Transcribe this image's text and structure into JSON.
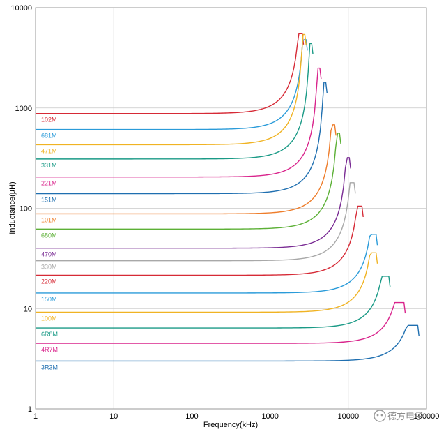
{
  "chart_data": {
    "type": "line",
    "xlabel": "Frequency(kHz)",
    "ylabel": "Inductance(µH)",
    "xscale": "log",
    "yscale": "log",
    "xlim": [
      1,
      100000
    ],
    "ylim": [
      1,
      10000
    ],
    "xticks": [
      1,
      10,
      100,
      1000,
      10000,
      100000
    ],
    "xtick_labels": [
      "1",
      "10",
      "100",
      "1000",
      "10000",
      "100000"
    ],
    "yticks": [
      1,
      10,
      100,
      1000,
      10000
    ],
    "ytick_labels": [
      "1",
      "10",
      "100",
      "1000",
      "10000"
    ],
    "grid": true,
    "series": [
      {
        "name": "102M",
        "color": "#d62a36",
        "L": 880,
        "srf": 2500,
        "peak": 5500
      },
      {
        "name": "681M",
        "color": "#2a9bd9",
        "L": 610,
        "srf": 2800,
        "peak": 4800
      },
      {
        "name": "471M",
        "color": "#f0b323",
        "L": 430,
        "srf": 2700,
        "peak": 5400
      },
      {
        "name": "331M",
        "color": "#1a9a86",
        "L": 310,
        "srf": 3300,
        "peak": 4400
      },
      {
        "name": "221M",
        "color": "#d9248c",
        "L": 205,
        "srf": 4200,
        "peak": 2500
      },
      {
        "name": "151M",
        "color": "#1f6fb0",
        "L": 140,
        "srf": 5000,
        "peak": 1800
      },
      {
        "name": "101M",
        "color": "#ee7d2b",
        "L": 88,
        "srf": 6500,
        "peak": 680
      },
      {
        "name": "680M",
        "color": "#5cb036",
        "L": 62,
        "srf": 7500,
        "peak": 560
      },
      {
        "name": "470M",
        "color": "#7a2c94",
        "L": 40,
        "srf": 10000,
        "peak": 320
      },
      {
        "name": "330M",
        "color": "#a8a8a8",
        "L": 30,
        "srf": 11500,
        "peak": 180
      },
      {
        "name": "220M",
        "color": "#d62a36",
        "L": 21.5,
        "srf": 14500,
        "peak": 105
      },
      {
        "name": "150M",
        "color": "#2a9bd9",
        "L": 14.3,
        "srf": 22000,
        "peak": 55
      },
      {
        "name": "100M",
        "color": "#f0b323",
        "L": 9.2,
        "srf": 22000,
        "peak": 36
      },
      {
        "name": "6R8M",
        "color": "#1a9a86",
        "L": 6.4,
        "srf": 32000,
        "peak": 21
      },
      {
        "name": "4R7M",
        "color": "#d9248c",
        "L": 4.5,
        "srf": 50000,
        "peak": 11.5
      },
      {
        "name": "3R3M",
        "color": "#1f6fb0",
        "L": 3.0,
        "srf": 75000,
        "peak": 6.8
      }
    ]
  },
  "watermark": {
    "text": "德方电子"
  }
}
